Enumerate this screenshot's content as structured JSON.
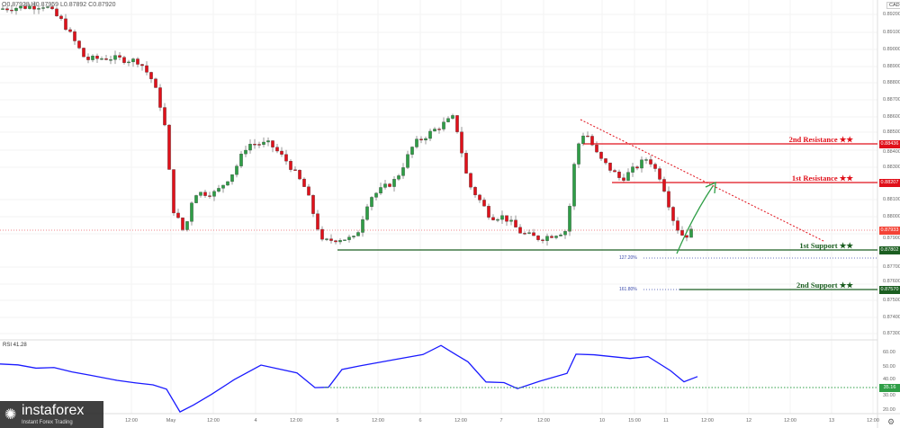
{
  "header": {
    "ohlc": "O0.87928  H0.87959  L0.87892  C0.87920",
    "currency": "CAD"
  },
  "colors": {
    "up": "#2e9e46",
    "down": "#e0101a",
    "resistance": "#e0101a",
    "support": "#1b5e20",
    "rsi": "#1a1aff",
    "fib": "#3949ab"
  },
  "levels": {
    "resistance2": {
      "label": "2nd Resistance ★★",
      "price": "0.88436"
    },
    "resistance1": {
      "label": "1st Resistance ★★",
      "price": "0.88207"
    },
    "current": {
      "price": "0.87933"
    },
    "support1": {
      "label": "1st Support ★★",
      "price": "0.87802"
    },
    "support2": {
      "label": "2nd Support ★★",
      "price": "0.87570"
    },
    "fib1": "127.20%",
    "fib2": "161.80%"
  },
  "y_axis": [
    "0.89200",
    "0.89100",
    "0.89000",
    "0.88900",
    "0.88800",
    "0.88700",
    "0.88600",
    "0.88500",
    "0.88400",
    "0.88300",
    "0.88100",
    "0.88000",
    "0.87900",
    "0.87700",
    "0.87600",
    "0.87500",
    "0.87400",
    "0.87300"
  ],
  "rsi": {
    "label": "RSI  41.28",
    "level": "35.16",
    "axis": [
      "60.00",
      "50.00",
      "40.00",
      "30.00",
      "20.00"
    ],
    "path": [
      [
        0,
        52
      ],
      [
        20,
        50
      ],
      [
        40,
        48
      ],
      [
        60,
        50
      ],
      [
        80,
        48
      ],
      [
        100,
        45
      ],
      [
        130,
        42
      ],
      [
        150,
        40
      ],
      [
        170,
        37
      ],
      [
        185,
        34
      ],
      [
        200,
        20
      ],
      [
        215,
        22
      ],
      [
        235,
        30
      ],
      [
        260,
        40
      ],
      [
        290,
        50
      ],
      [
        330,
        46
      ],
      [
        350,
        37
      ],
      [
        365,
        35
      ],
      [
        380,
        48
      ],
      [
        400,
        52
      ],
      [
        440,
        55
      ],
      [
        470,
        60
      ],
      [
        490,
        65
      ],
      [
        505,
        58
      ],
      [
        520,
        55
      ],
      [
        540,
        40
      ],
      [
        560,
        38
      ],
      [
        575,
        35
      ],
      [
        600,
        40
      ],
      [
        630,
        44
      ],
      [
        640,
        60
      ],
      [
        660,
        58
      ],
      [
        700,
        55
      ],
      [
        720,
        58
      ],
      [
        745,
        48
      ],
      [
        760,
        40
      ],
      [
        775,
        42
      ]
    ]
  },
  "x_axis": [
    "12:00",
    "May",
    "12:00",
    "4",
    "12:00",
    "5",
    "12:00",
    "6",
    "12:00",
    "7",
    "12:00",
    "10",
    "15:00",
    "11",
    "12:00",
    "12",
    "12:00",
    "13",
    "12:00"
  ],
  "price_path": [
    [
      0,
      0.8923
    ],
    [
      50,
      0.8925
    ],
    [
      70,
      0.8915
    ],
    [
      95,
      0.8893
    ],
    [
      120,
      0.8894
    ],
    [
      155,
      0.8892
    ],
    [
      170,
      0.888
    ],
    [
      182,
      0.8859
    ],
    [
      192,
      0.8805
    ],
    [
      205,
      0.879
    ],
    [
      215,
      0.8814
    ],
    [
      240,
      0.8814
    ],
    [
      260,
      0.8827
    ],
    [
      275,
      0.8843
    ],
    [
      300,
      0.8843
    ],
    [
      320,
      0.8832
    ],
    [
      340,
      0.8816
    ],
    [
      358,
      0.8785
    ],
    [
      375,
      0.8787
    ],
    [
      395,
      0.8787
    ],
    [
      410,
      0.8811
    ],
    [
      440,
      0.8822
    ],
    [
      460,
      0.8843
    ],
    [
      490,
      0.8854
    ],
    [
      505,
      0.8859
    ],
    [
      520,
      0.882
    ],
    [
      545,
      0.88
    ],
    [
      560,
      0.88
    ],
    [
      580,
      0.879
    ],
    [
      600,
      0.8787
    ],
    [
      630,
      0.8792
    ],
    [
      640,
      0.884
    ],
    [
      650,
      0.8851
    ],
    [
      665,
      0.8835
    ],
    [
      690,
      0.8822
    ],
    [
      720,
      0.8835
    ],
    [
      735,
      0.8822
    ],
    [
      750,
      0.8795
    ],
    [
      760,
      0.8788
    ],
    [
      770,
      0.8792
    ]
  ]
}
